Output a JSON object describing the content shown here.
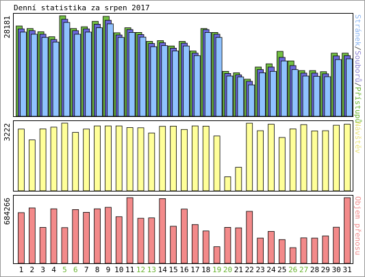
{
  "chart_data": {
    "type": "bar",
    "title": "Denní statistika za srpen 2017",
    "categories": [
      "1",
      "2",
      "3",
      "4",
      "5",
      "6",
      "7",
      "8",
      "9",
      "10",
      "11",
      "12",
      "13",
      "14",
      "15",
      "16",
      "17",
      "18",
      "19",
      "20",
      "21",
      "22",
      "23",
      "24",
      "25",
      "26",
      "27",
      "28",
      "29",
      "30",
      "31"
    ],
    "weekend_days": [
      "5",
      "6",
      "12",
      "13",
      "19",
      "20",
      "26",
      "27"
    ],
    "panels": [
      {
        "id": "top",
        "ymax_label": "28181",
        "right_label_parts": [
          {
            "text": "Stránek",
            "color": "#8ab4f0"
          },
          {
            "text": "/",
            "color": "#555555"
          },
          {
            "text": "Souborů",
            "color": "#8a7fd0"
          },
          {
            "text": "/",
            "color": "#555555"
          },
          {
            "text": "Přístupů",
            "color": "#69b32f"
          }
        ],
        "ymax": 28181,
        "series": [
          {
            "name": "Přístupů",
            "color": "#73c044",
            "values": [
              25300,
              24600,
              23700,
              22300,
              28181,
              24600,
              25100,
              26600,
              28000,
              23400,
              24800,
              23500,
              21000,
              21200,
              19700,
              21000,
              18300,
              24600,
              23500,
              12600,
              12200,
              10400,
              13800,
              14700,
              18200,
              15500,
              12800,
              12800,
              12500,
              17700,
              17700
            ]
          },
          {
            "name": "Souborů",
            "color": "#6b69dc",
            "values": [
              24500,
              24000,
              23000,
              21500,
              27200,
              24000,
              24500,
              25800,
              26900,
              22800,
              24300,
              22900,
              20400,
              20600,
              19100,
              20500,
              17700,
              24300,
              23000,
              12000,
              11600,
              9800,
              13100,
              13800,
              16500,
              14200,
              12100,
              12100,
              11900,
              16900,
              17000
            ]
          },
          {
            "name": "Stránek",
            "color": "#8fc2ff",
            "values": [
              23600,
              23000,
              22100,
              20800,
              26300,
              23000,
              23600,
              24800,
              25900,
              22100,
              23500,
              22200,
              19500,
              19800,
              18300,
              19700,
              17000,
              23500,
              22100,
              11300,
              11000,
              8800,
              12200,
              12600,
              15500,
              13100,
              11300,
              11200,
              11100,
              15900,
              16100
            ]
          }
        ]
      },
      {
        "id": "mid",
        "ymax_label": "3222",
        "right_label_parts": [
          {
            "text": "Návštěv",
            "color": "#e9e27a"
          }
        ],
        "ymax": 3222,
        "series": [
          {
            "name": "Návštěv",
            "color": "#ffff99",
            "values": [
              2940,
              2420,
              2950,
              3030,
              3222,
              2780,
              2940,
              3090,
              3090,
              3090,
              3010,
              3000,
              2750,
              3070,
              3080,
              2920,
              3090,
              3080,
              2610,
              670,
              1120,
              3220,
              2860,
              3170,
              2540,
              2950,
              3150,
              2850,
              2860,
              3120,
              3170
            ]
          }
        ]
      },
      {
        "id": "bot",
        "ymax_label": "684266",
        "right_label_parts": [
          {
            "text": "Objem přenosu",
            "color": "#ee8c8c"
          }
        ],
        "ymax": 684266,
        "series": [
          {
            "name": "Objem přenosu",
            "color": "#f38a8a",
            "values": [
              528000,
              577000,
              374000,
              568000,
              372000,
              560000,
              532000,
              568000,
              584000,
              486000,
              684266,
              470000,
              473000,
              674000,
              386000,
              565000,
              404000,
              337000,
              173000,
              375000,
              370000,
              542000,
              263000,
              333000,
              247000,
              163000,
              265000,
              263000,
              285000,
              376000,
              684266
            ]
          }
        ]
      }
    ]
  }
}
